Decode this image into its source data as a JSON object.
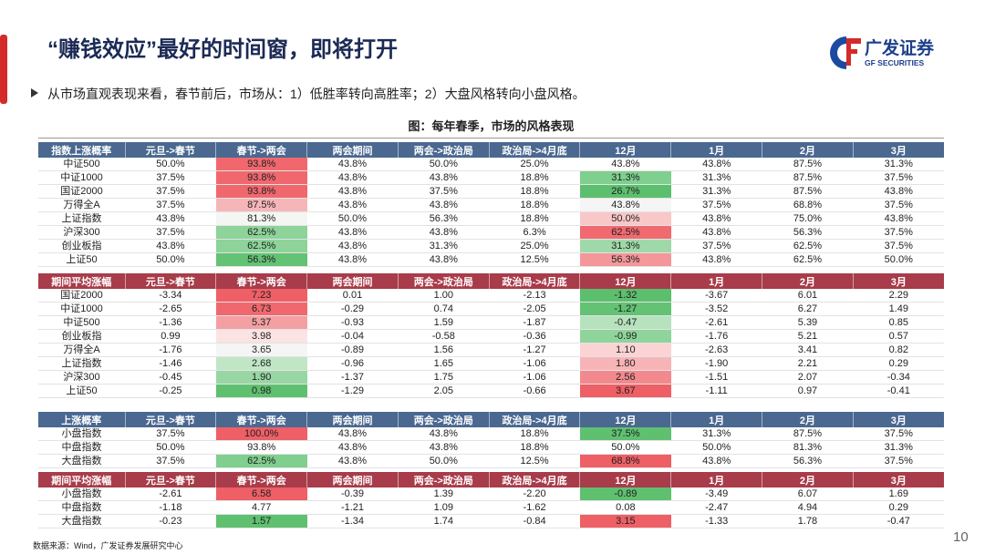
{
  "header": {
    "title": "“赚钱效应”最好的时间窗，即将打开",
    "logo_cn": "广发证券",
    "logo_en": "GF SECURITIES"
  },
  "bullet": "从市场直观表现来看，春节前后，市场从：1）低胜率转向高胜率；2）大盘风格转向小盘风格。",
  "caption": "图：每年春季，市场的风格表现",
  "tables": [
    {
      "header_color": "#4a6890",
      "shade_columns": [
        2,
        6
      ],
      "header": [
        "指数上涨概率",
        "元旦->春节",
        "春节->两会",
        "两会期间",
        "两会->政治局",
        "政治局->4月底",
        "12月",
        "1月",
        "2月",
        "3月"
      ],
      "rows": [
        [
          "中证500",
          "50.0%",
          "93.8%",
          "43.8%",
          "50.0%",
          "25.0%",
          "43.8%",
          "43.8%",
          "87.5%",
          "31.3%"
        ],
        [
          "中证1000",
          "37.5%",
          "93.8%",
          "43.8%",
          "43.8%",
          "18.8%",
          "31.3%",
          "31.3%",
          "87.5%",
          "37.5%"
        ],
        [
          "国证2000",
          "37.5%",
          "93.8%",
          "43.8%",
          "37.5%",
          "18.8%",
          "26.7%",
          "31.3%",
          "87.5%",
          "43.8%"
        ],
        [
          "万得全A",
          "37.5%",
          "87.5%",
          "43.8%",
          "43.8%",
          "18.8%",
          "43.8%",
          "37.5%",
          "68.8%",
          "37.5%"
        ],
        [
          "上证指数",
          "43.8%",
          "81.3%",
          "50.0%",
          "56.3%",
          "18.8%",
          "50.0%",
          "43.8%",
          "75.0%",
          "43.8%"
        ],
        [
          "沪深300",
          "37.5%",
          "62.5%",
          "43.8%",
          "43.8%",
          "6.3%",
          "62.5%",
          "43.8%",
          "56.3%",
          "37.5%"
        ],
        [
          "创业板指",
          "43.8%",
          "62.5%",
          "43.8%",
          "31.3%",
          "25.0%",
          "31.3%",
          "37.5%",
          "62.5%",
          "37.5%"
        ],
        [
          "上证50",
          "50.0%",
          "56.3%",
          "43.8%",
          "43.8%",
          "12.5%",
          "56.3%",
          "43.8%",
          "62.5%",
          "50.0%"
        ]
      ],
      "shades": [
        [
          "#f0686e",
          null
        ],
        [
          "#f0686e",
          "#7fcf8f"
        ],
        [
          "#f0686e",
          "#5cbf6e"
        ],
        [
          "#f6b6b8",
          "#f5f5f5"
        ],
        [
          "#f3f6f3",
          "#f8c8c9"
        ],
        [
          "#8dd39a",
          "#f06a70"
        ],
        [
          "#8dd39a",
          "#9fd9a9"
        ],
        [
          "#63c274",
          "#f4979a"
        ]
      ]
    },
    {
      "header_color": "#a83c4a",
      "shade_columns": [
        2,
        6
      ],
      "header": [
        "期间平均涨幅",
        "元旦->春节",
        "春节->两会",
        "两会期间",
        "两会->政治局",
        "政治局->4月底",
        "12月",
        "1月",
        "2月",
        "3月"
      ],
      "rows": [
        [
          "国证2000",
          "-3.34",
          "7.23",
          "0.01",
          "1.00",
          "-2.13",
          "-1.32",
          "-3.67",
          "6.01",
          "2.29"
        ],
        [
          "中证1000",
          "-2.65",
          "6.73",
          "-0.29",
          "0.74",
          "-2.05",
          "-1.27",
          "-3.52",
          "6.27",
          "1.49"
        ],
        [
          "中证500",
          "-1.36",
          "5.37",
          "-0.93",
          "1.59",
          "-1.87",
          "-0.47",
          "-2.61",
          "5.39",
          "0.85"
        ],
        [
          "创业板指",
          "0.99",
          "3.98",
          "-0.04",
          "-0.58",
          "-0.36",
          "-0.99",
          "-1.76",
          "5.21",
          "0.57"
        ],
        [
          "万得全A",
          "-1.76",
          "3.65",
          "-0.89",
          "1.56",
          "-1.27",
          "1.10",
          "-2.63",
          "3.41",
          "0.82"
        ],
        [
          "上证指数",
          "-1.46",
          "2.68",
          "-0.96",
          "1.65",
          "-1.06",
          "1.80",
          "-1.90",
          "2.21",
          "0.29"
        ],
        [
          "沪深300",
          "-0.45",
          "1.90",
          "-1.37",
          "1.75",
          "-1.06",
          "2.56",
          "-1.51",
          "2.07",
          "-0.34"
        ],
        [
          "上证50",
          "-0.25",
          "0.98",
          "-1.29",
          "2.05",
          "-0.66",
          "3.67",
          "-1.11",
          "0.97",
          "-0.41"
        ]
      ],
      "shades": [
        [
          "#ee5f66",
          "#5cbf6e"
        ],
        [
          "#f0686e",
          "#63c274"
        ],
        [
          "#f4a0a3",
          "#b6e2bd"
        ],
        [
          "#fbe3e3",
          "#8fd49b"
        ],
        [
          "#f5f5f5",
          "#fbd3d4"
        ],
        [
          "#c0e6c6",
          "#f7b4b6"
        ],
        [
          "#98d6a3",
          "#f2898d"
        ],
        [
          "#5fc070",
          "#ee5f66"
        ]
      ]
    },
    {
      "header_color": "#4a6890",
      "shade_columns": [
        2,
        6
      ],
      "header": [
        "上涨概率",
        "元旦->春节",
        "春节->两会",
        "两会期间",
        "两会->政治局",
        "政治局->4月底",
        "12月",
        "1月",
        "2月",
        "3月"
      ],
      "rows": [
        [
          "小盘指数",
          "37.5%",
          "100.0%",
          "43.8%",
          "43.8%",
          "18.8%",
          "37.5%",
          "31.3%",
          "87.5%",
          "37.5%"
        ],
        [
          "中盘指数",
          "50.0%",
          "93.8%",
          "43.8%",
          "43.8%",
          "18.8%",
          "50.0%",
          "50.0%",
          "81.3%",
          "31.3%"
        ],
        [
          "大盘指数",
          "37.5%",
          "62.5%",
          "43.8%",
          "50.0%",
          "12.5%",
          "68.8%",
          "43.8%",
          "56.3%",
          "37.5%"
        ]
      ],
      "shades": [
        [
          "#ee5f66",
          "#5fc070"
        ],
        [
          null,
          null
        ],
        [
          "#7fcf8f",
          "#ee5f66"
        ]
      ]
    },
    {
      "header_color": "#a83c4a",
      "shade_columns": [
        2,
        6
      ],
      "header": [
        "期间平均涨幅",
        "元旦->春节",
        "春节->两会",
        "两会期间",
        "两会->政治局",
        "政治局->4月底",
        "12月",
        "1月",
        "2月",
        "3月"
      ],
      "rows": [
        [
          "小盘指数",
          "-2.61",
          "6.58",
          "-0.39",
          "1.39",
          "-2.20",
          "-0.89",
          "-3.49",
          "6.07",
          "1.69"
        ],
        [
          "中盘指数",
          "-1.18",
          "4.77",
          "-1.21",
          "1.09",
          "-1.62",
          "0.08",
          "-2.47",
          "4.94",
          "0.29"
        ],
        [
          "大盘指数",
          "-0.23",
          "1.57",
          "-1.34",
          "1.74",
          "-0.84",
          "3.15",
          "-1.33",
          "1.78",
          "-0.47"
        ]
      ],
      "shades": [
        [
          "#ee5f66",
          "#5fc070"
        ],
        [
          null,
          null
        ],
        [
          "#5fc070",
          "#ee5f66"
        ]
      ]
    }
  ],
  "footer": {
    "source": "数据来源：Wind，广发证券发展研究中心",
    "page": "10"
  }
}
